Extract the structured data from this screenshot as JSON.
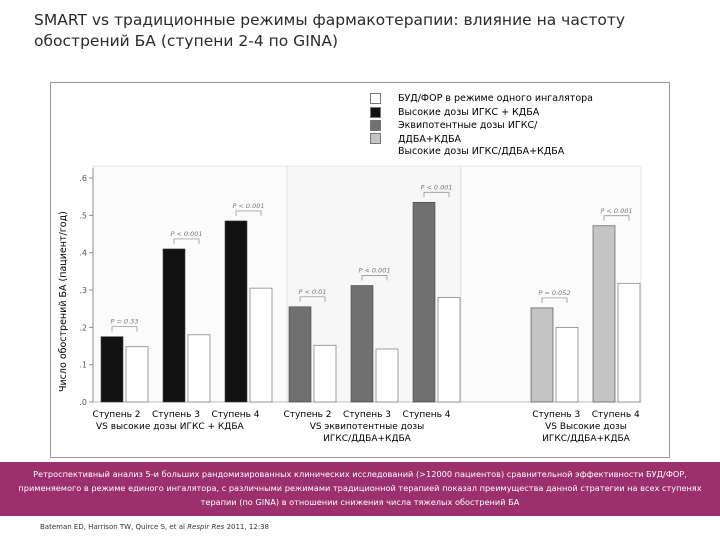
{
  "title": "SMART vs традиционные  режимы фармакотерапии: влияние на частоту обострений БА  (ступени 2-4 по  GINA)",
  "chart_data": {
    "type": "bar",
    "ylabel": "Число обострений БА (пациент/год)",
    "ylim": [
      0,
      0.6
    ],
    "yticks": [
      0,
      0.1,
      0.2,
      0.3,
      0.4,
      0.5,
      0.6
    ],
    "ytick_labels": [
      ".0",
      ".1",
      ".2",
      ".3",
      ".4",
      ".5",
      ".6"
    ],
    "legend": {
      "position": "top-right",
      "entries": [
        {
          "label": "БУД/ФОР в режиме одного ингалятора",
          "color": "#ffffff"
        },
        {
          "label": "Высокие дозы ИГКС + КДБА",
          "color": "#111111"
        },
        {
          "label": "Эквипотентные дозы ИГКС/ДДБА+КДБА",
          "color": "#707070"
        },
        {
          "label": "Высокие дозы ИГКС/ДДБА+КДБА",
          "color": "#c4c4c4"
        }
      ]
    },
    "groups": [
      {
        "categories": [
          "Ступень 2",
          "Ступень 3",
          "Ступень 4"
        ],
        "comparison": "VS высокие дозы ИГКС + КДБА",
        "pairs": [
          {
            "comparator": 0.175,
            "smart": 0.148,
            "p": "P = 0.33"
          },
          {
            "comparator": 0.41,
            "smart": 0.18,
            "p": "P < 0.001"
          },
          {
            "comparator": 0.485,
            "smart": 0.305,
            "p": "P < 0.001"
          }
        ],
        "comparator_color": "#111111"
      },
      {
        "categories": [
          "Ступень 2",
          "Ступень 3",
          "Ступень 4"
        ],
        "comparison": "VS эквипотентные дозы ИГКС/ДДБА+КДБА",
        "pairs": [
          {
            "comparator": 0.255,
            "smart": 0.152,
            "p": "P < 0.01"
          },
          {
            "comparator": 0.312,
            "smart": 0.142,
            "p": "P < 0.001"
          },
          {
            "comparator": 0.535,
            "smart": 0.28,
            "p": "P < 0.001"
          }
        ],
        "comparator_color": "#707070"
      },
      {
        "categories": [
          "Ступень 3",
          "Ступень 4"
        ],
        "comparison": "VS Высокие дозы ИГКС/ДДБА+КДБА",
        "pairs": [
          {
            "comparator": 0.252,
            "smart": 0.2,
            "p": "P = 0.052"
          },
          {
            "comparator": 0.472,
            "smart": 0.318,
            "p": "P < 0.001"
          }
        ],
        "comparator_color": "#c4c4c4"
      }
    ]
  },
  "caption": "Ретроспективный анализ 5-и больших рандомизированных клинических исследований (>12000 пациентов) сравнительной эффективности БУД/ФОР, применяемого в режиме единого ингалятора, с различными режимами традиционной терапией показал преимущества данной стратегии на всех ступенях терапии (по GINA) в отношении снижения числа тяжелых обострений БА",
  "reference": {
    "authors": "Bateman ED, Harrison TW, Quirce S, et al",
    "journal": "Respir Res",
    "details": "2011, 12:38"
  }
}
